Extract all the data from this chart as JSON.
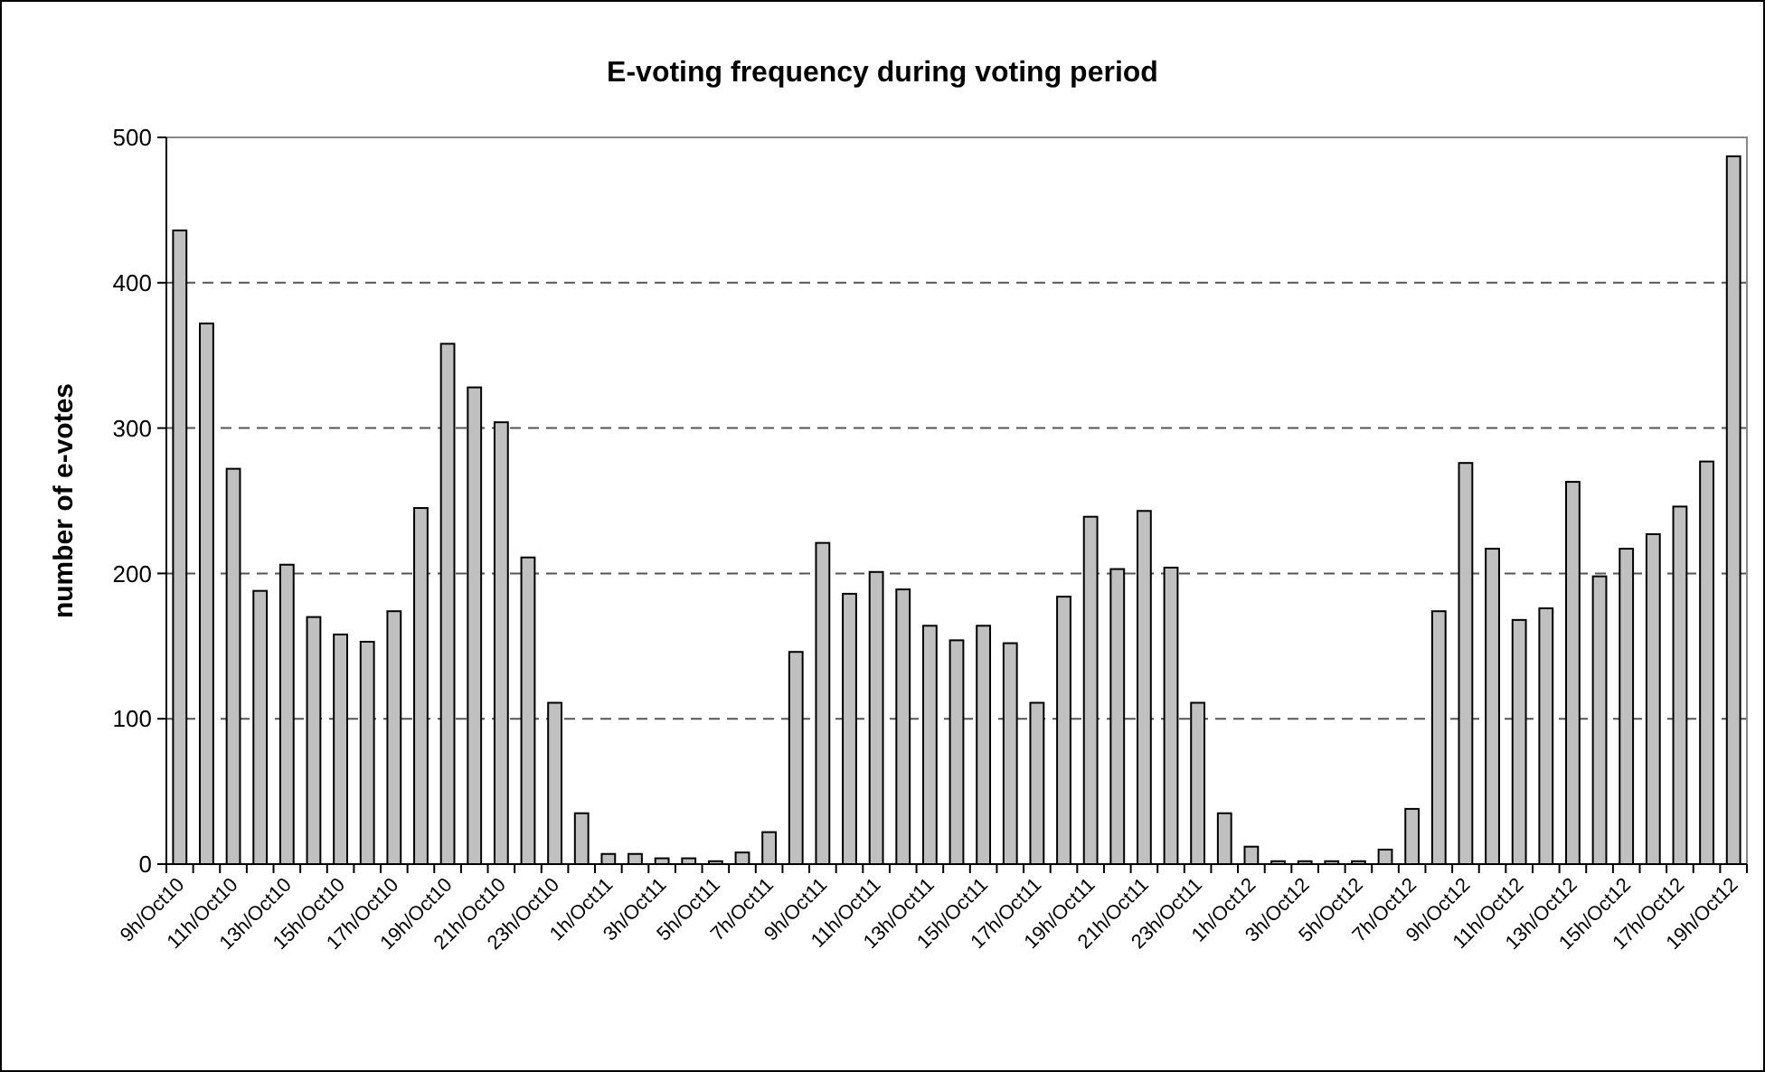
{
  "chart_data": {
    "type": "bar",
    "title": "E-voting frequency during voting period",
    "ylabel": "number of e-votes",
    "categories": [
      "9h/Oct10",
      null,
      "11h/Oct10",
      null,
      "13h/Oct10",
      null,
      "15h/Oct10",
      null,
      "17h/Oct10",
      null,
      "19h/Oct10",
      null,
      "21h/Oct10",
      null,
      "23h/Oct10",
      null,
      "1h/Oct11",
      null,
      "3h/Oct11",
      null,
      "5h/Oct11",
      null,
      "7h/Oct11",
      null,
      "9h/Oct11",
      null,
      "11h/Oct11",
      null,
      "13h/Oct11",
      null,
      "15h/Oct11",
      null,
      "17h/Oct11",
      null,
      "19h/Oct11",
      null,
      "21h/Oct11",
      null,
      "23h/Oct11",
      null,
      "1h/Oct12",
      null,
      "3h/Oct12",
      null,
      "5h/Oct12",
      null,
      "7h/Oct12",
      null,
      "9h/Oct12",
      null,
      "11h/Oct12",
      null,
      "13h/Oct12",
      null,
      "15h/Oct12",
      null,
      "17h/Oct12",
      null,
      "19h/Oct12"
    ],
    "values": [
      436,
      372,
      272,
      188,
      206,
      170,
      158,
      153,
      174,
      245,
      358,
      328,
      304,
      211,
      111,
      35,
      7,
      7,
      4,
      4,
      2,
      8,
      22,
      146,
      221,
      186,
      201,
      189,
      164,
      154,
      164,
      152,
      111,
      184,
      239,
      203,
      243,
      204,
      111,
      35,
      12,
      2,
      2,
      2,
      2,
      10,
      38,
      174,
      276,
      217,
      168,
      176,
      263,
      198,
      217,
      227,
      246,
      277,
      487
    ],
    "color": "#c0c0c0",
    "ylim": [
      0,
      500
    ],
    "yticks": [
      0,
      100,
      200,
      300,
      400,
      500
    ],
    "grid": "y"
  }
}
